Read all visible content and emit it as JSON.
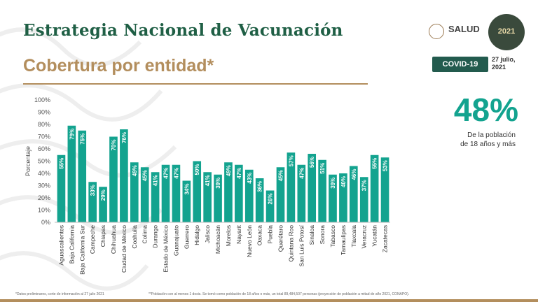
{
  "header": {
    "title": "Estrategia Nacional de Vacunación",
    "subtitle": "Cobertura por entidad*",
    "salud_label": "SALUD",
    "seal_label": "2021",
    "covid_badge": "COVID-19",
    "date_line1": "27 julio,",
    "date_line2": "2021"
  },
  "highlight": {
    "value": "48%",
    "caption_line1": "De la población",
    "caption_line2": "de 18 años y más"
  },
  "footnotes": {
    "note1": "*Datos preliminares, corte de información al 27 julio 2021",
    "note2": "**Población con al menos 1 dosis. Se tomó como población de 18 años o más, un total 89,484,507 personas (proyección de población a mitad de año 2021, CONAPO)."
  },
  "colors": {
    "title": "#1f5f45",
    "accent_gold": "#b38e5d",
    "bar": "#13a38f",
    "badge": "#235b4e"
  },
  "chart_data": {
    "type": "bar",
    "ylabel": "Porcentaje",
    "ylim": [
      0,
      100
    ],
    "yticks": [
      0,
      10,
      20,
      30,
      40,
      50,
      60,
      70,
      80,
      90,
      100
    ],
    "ytick_suffix": "%",
    "grid": false,
    "categories": [
      "Aguascalientes",
      "Baja California",
      "Baja California Sur",
      "Campeche",
      "Chiapas",
      "Chihuahua",
      "Ciudad de México",
      "Coahuila",
      "Colima",
      "Durango",
      "Estado de México",
      "Guanajuato",
      "Guerrero",
      "Hidalgo",
      "Jalisco",
      "Michoacán",
      "Morelos",
      "Nayarit",
      "Nuevo León",
      "Oaxaca",
      "Puebla",
      "Querétaro",
      "Quintana Roo",
      "San Luis Potosí",
      "Sinaloa",
      "Sonora",
      "Tabasco",
      "Tamaulipas",
      "Tlaxcala",
      "Veracruz",
      "Yucatán",
      "Zacatecas"
    ],
    "values": [
      55,
      79,
      75,
      33,
      29,
      70,
      76,
      49,
      45,
      41,
      47,
      47,
      34,
      50,
      41,
      39,
      49,
      47,
      43,
      36,
      26,
      45,
      57,
      47,
      56,
      51,
      39,
      40,
      46,
      37,
      55,
      53
    ],
    "value_labels": [
      "55%",
      "79%",
      "75%",
      "33%",
      "29%",
      "70%",
      "76%",
      "49%",
      "45%",
      "41%",
      "47%",
      "47%",
      "34%",
      "50%",
      "41%",
      "39%",
      "49%",
      "47%",
      "43%",
      "36%",
      "26%",
      "45%",
      "57%",
      "47%",
      "56%",
      "51%",
      "39%",
      "40%",
      "46%",
      "37%",
      "55%",
      "53%"
    ]
  }
}
